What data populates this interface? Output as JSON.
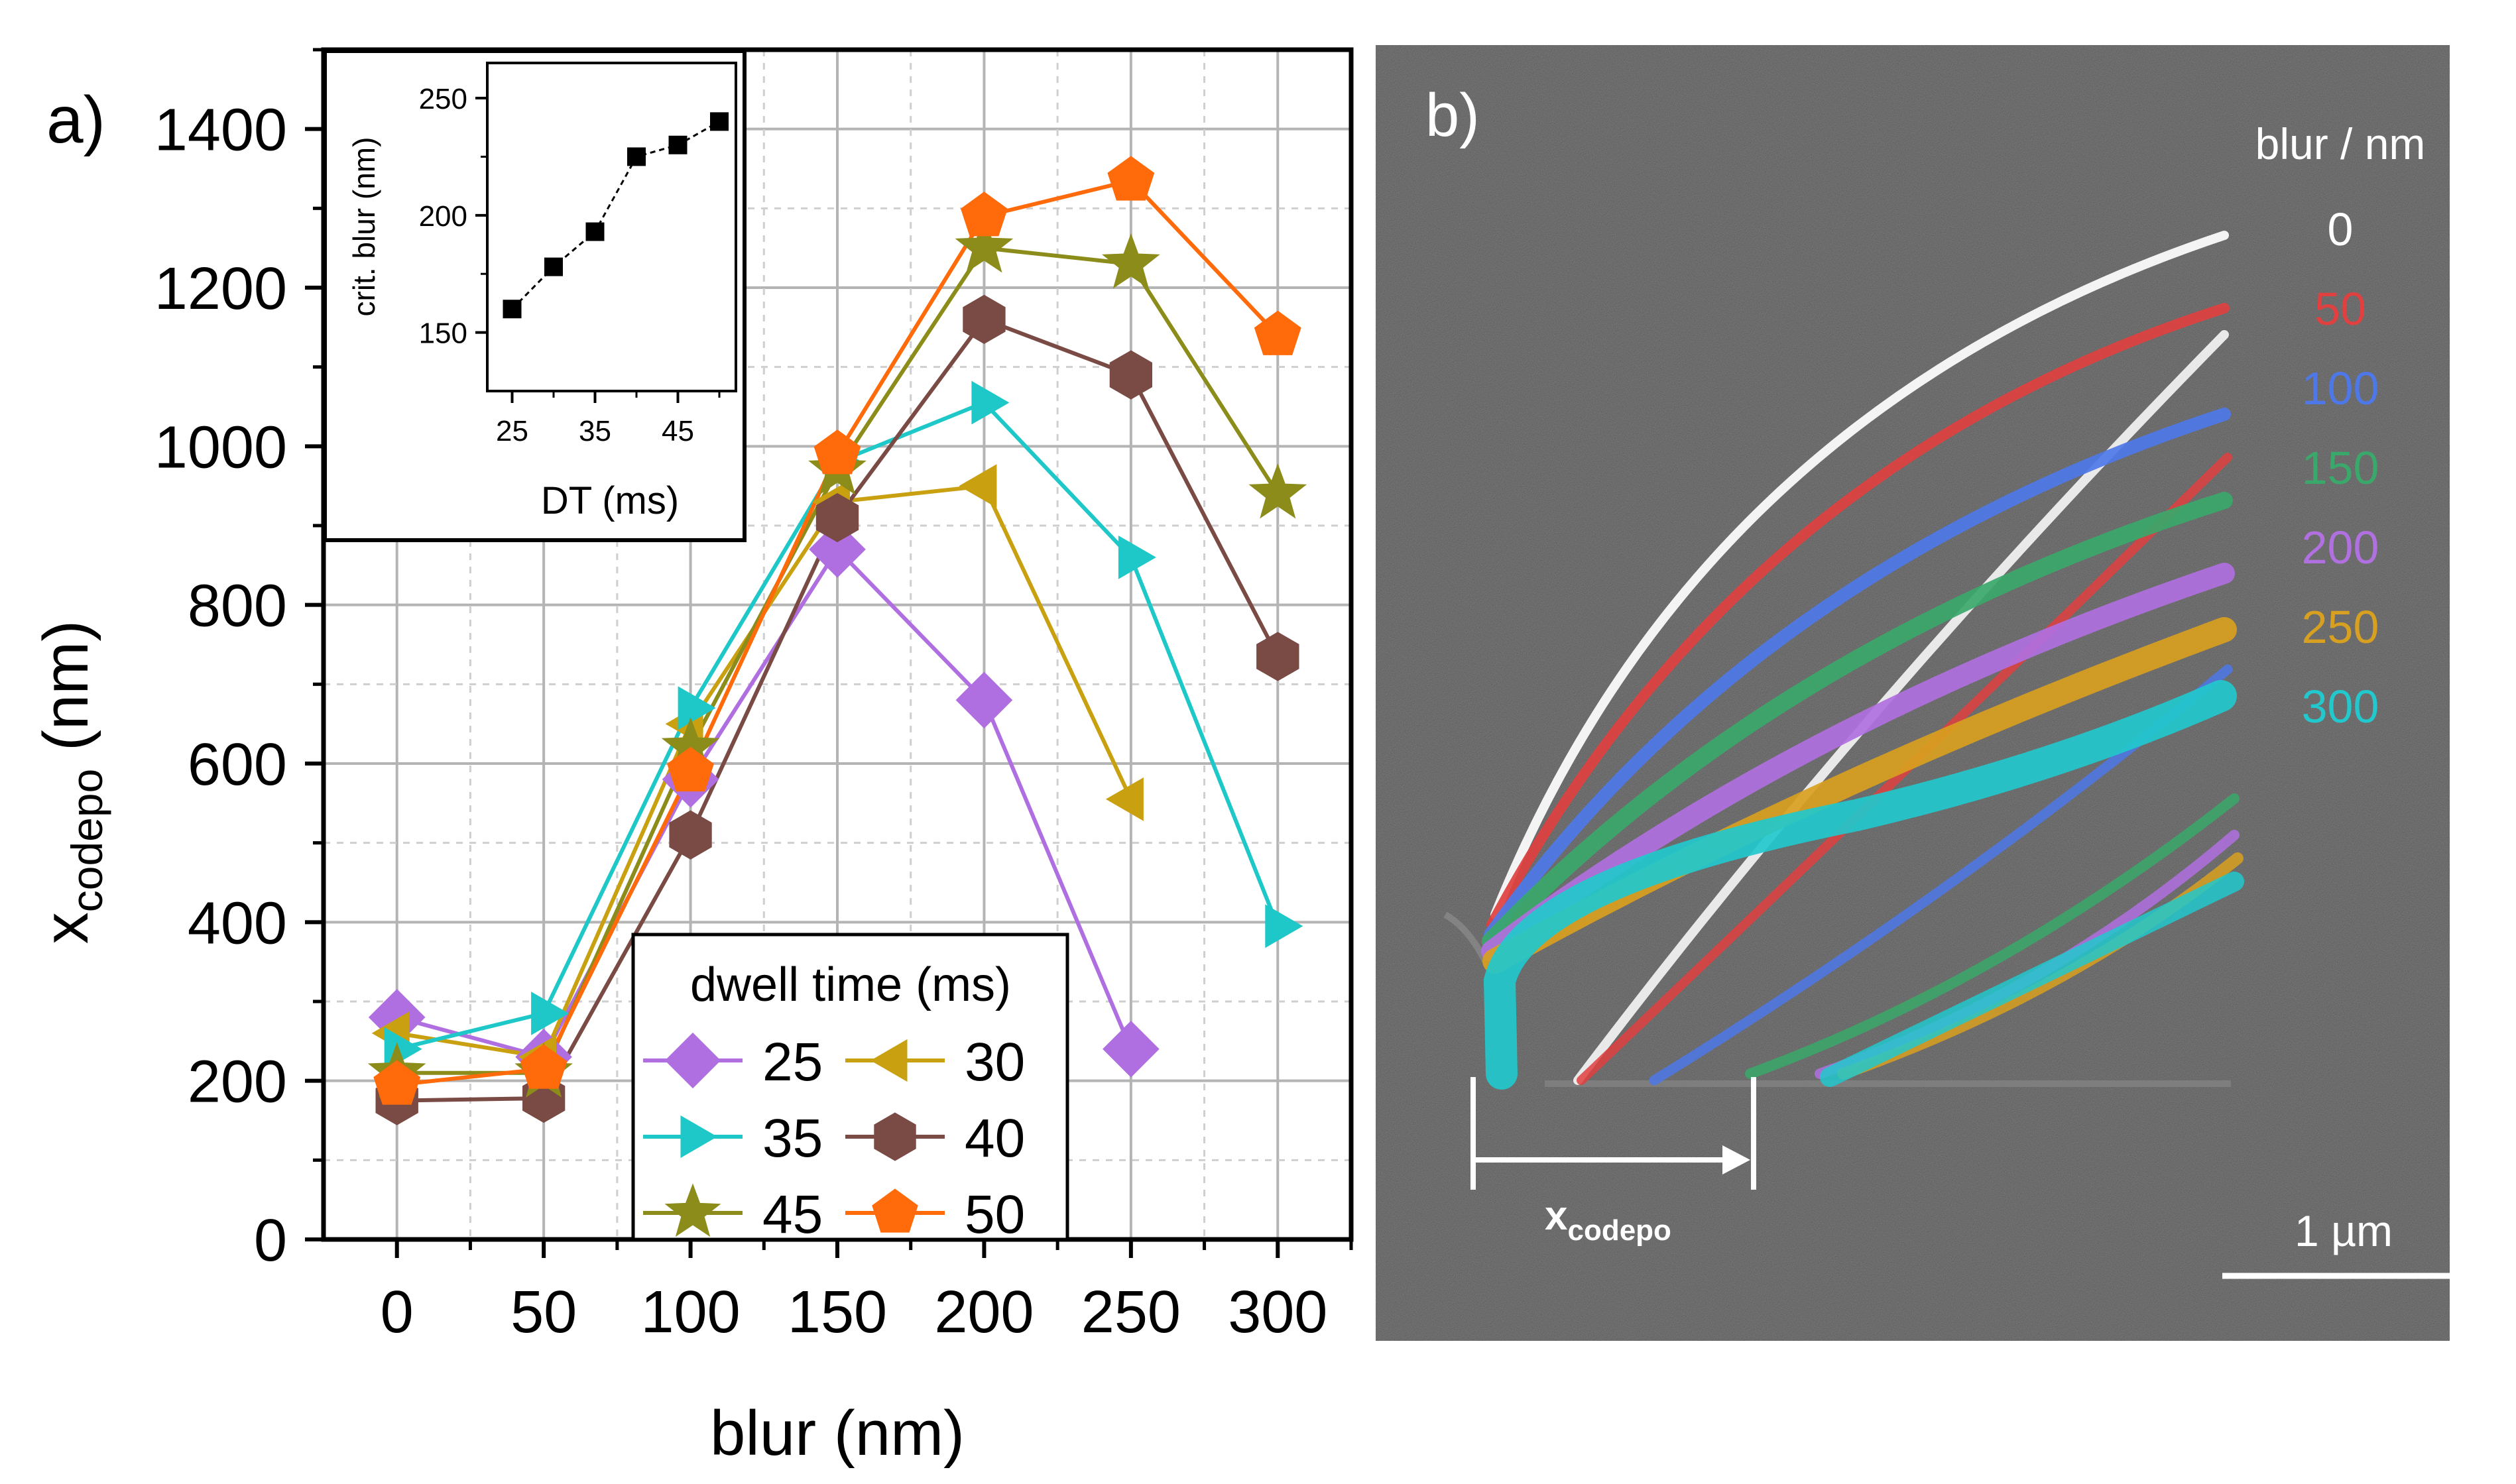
{
  "panel_a": {
    "label": "a)",
    "chart_data": {
      "type": "line",
      "xlabel": "blur (nm)",
      "ylabel_main": "x",
      "ylabel_sub": "codepo",
      "ylabel_unit": " (nm)",
      "x": [
        0,
        50,
        100,
        150,
        200,
        250,
        300
      ],
      "xlim": [
        -25,
        325
      ],
      "ylim": [
        0,
        1500
      ],
      "xticks": [
        "0",
        "50",
        "100",
        "150",
        "200",
        "250",
        "300"
      ],
      "yticks": [
        "0",
        "200",
        "400",
        "600",
        "800",
        "1000",
        "1200",
        "1400"
      ],
      "legend_title": "dwell time (ms)",
      "legend_position": "bottom-center",
      "grid": true,
      "series": [
        {
          "name": "25",
          "marker": "diamond",
          "color": "#b06fe0",
          "values": [
            280,
            230,
            580,
            870,
            680,
            240,
            null
          ]
        },
        {
          "name": "30",
          "marker": "triangle-left",
          "color": "#c9a010",
          "values": [
            260,
            230,
            650,
            930,
            950,
            555,
            null
          ]
        },
        {
          "name": "35",
          "marker": "triangle-right",
          "color": "#1ec8c8",
          "values": [
            240,
            285,
            670,
            980,
            1055,
            860,
            395
          ]
        },
        {
          "name": "40",
          "marker": "hexagon",
          "color": "#7a4a45",
          "values": [
            175,
            178,
            510,
            910,
            1160,
            1090,
            735
          ]
        },
        {
          "name": "45",
          "marker": "star",
          "color": "#8c8c1a",
          "values": [
            210,
            210,
            620,
            970,
            1250,
            1230,
            940
          ]
        },
        {
          "name": "50",
          "marker": "pentagon",
          "color": "#ff6a0a",
          "values": [
            195,
            215,
            590,
            990,
            1290,
            1335,
            1140
          ]
        }
      ]
    },
    "inset": {
      "chart_data": {
        "type": "scatter",
        "xlabel": "DT (ms)",
        "ylabel": "crit. blur (nm)",
        "x": [
          25,
          30,
          35,
          40,
          45,
          50
        ],
        "values": [
          160,
          178,
          193,
          225,
          230,
          240
        ],
        "xlim": [
          22,
          52
        ],
        "ylim": [
          125,
          265
        ],
        "xticks": [
          "25",
          "35",
          "45"
        ],
        "yticks": [
          "150",
          "200",
          "250"
        ],
        "color": "#000000"
      }
    }
  },
  "panel_b": {
    "label": "b)",
    "legend_title": "blur / nm",
    "legend_items": [
      {
        "label": "0",
        "color": "#ffffff"
      },
      {
        "label": "50",
        "color": "#e04040"
      },
      {
        "label": "100",
        "color": "#4e78e8"
      },
      {
        "label": "150",
        "color": "#3aa86a"
      },
      {
        "label": "200",
        "color": "#b070e0"
      },
      {
        "label": "250",
        "color": "#d8a020"
      },
      {
        "label": "300",
        "color": "#22c8cc"
      }
    ],
    "measure_main": "x",
    "measure_sub": "codepo",
    "scalebar_label": "1 µm"
  }
}
